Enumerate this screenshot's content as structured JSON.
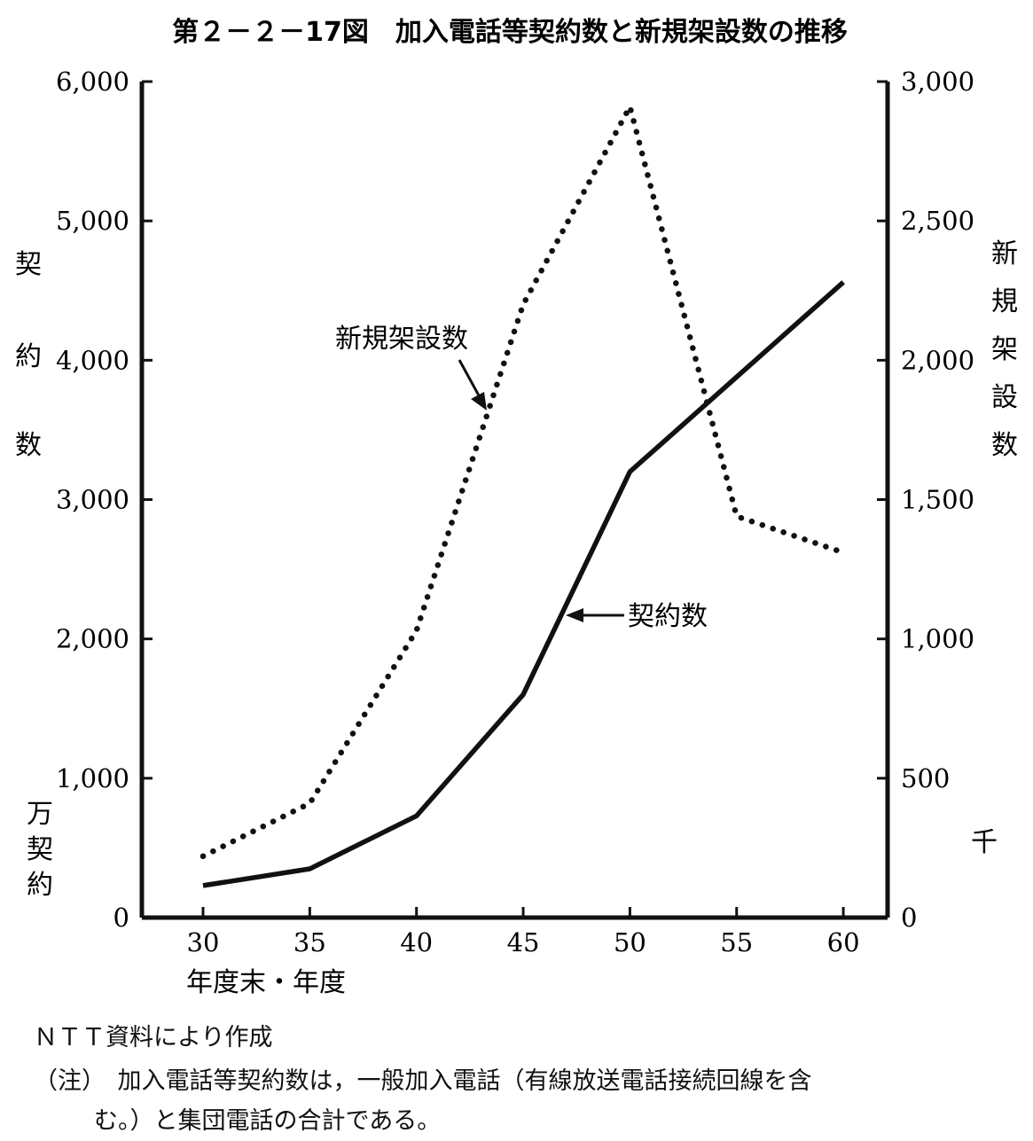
{
  "chart_data": {
    "type": "line",
    "title": "第２－２－17図　加入電話等契約数と新規架設数の推移",
    "xlabel": "年度末・年度",
    "categories": [
      "30",
      "35",
      "40",
      "45",
      "50",
      "55",
      "60"
    ],
    "x": [
      30,
      35,
      40,
      45,
      50,
      55,
      60
    ],
    "left_axis": {
      "label_chars": [
        "契",
        "約",
        "数"
      ],
      "unit_chars": [
        "万",
        "契",
        "約"
      ],
      "ylim": [
        0,
        6000
      ],
      "ticks": [
        0,
        1000,
        2000,
        3000,
        4000,
        5000,
        6000
      ],
      "tick_labels": [
        "0",
        "1,000",
        "2,000",
        "3,000",
        "4,000",
        "5,000",
        "6,000"
      ]
    },
    "right_axis": {
      "label_chars": [
        "新",
        "規",
        "架",
        "設",
        "数"
      ],
      "unit": "千",
      "ylim": [
        0,
        3000
      ],
      "ticks": [
        0,
        500,
        1000,
        1500,
        2000,
        2500,
        3000
      ],
      "tick_labels": [
        "0",
        "500",
        "1,000",
        "1,500",
        "2,000",
        "2,500",
        "3,000"
      ]
    },
    "series": [
      {
        "name": "新規架設数",
        "axis": "right",
        "style": "dotted",
        "x": [
          30,
          35,
          40,
          45,
          50,
          55,
          60
        ],
        "values": [
          220,
          410,
          1030,
          2200,
          2910,
          1440,
          1310
        ]
      },
      {
        "name": "契約数",
        "axis": "left",
        "style": "solid",
        "x": [
          30,
          35,
          40,
          45,
          50,
          55,
          60
        ],
        "values": [
          230,
          350,
          730,
          1600,
          3200,
          3880,
          4560
        ]
      }
    ],
    "annotations": {
      "new_installations_label": "新規架設数",
      "contracts_label": "契約数"
    }
  },
  "notes": {
    "source": "ＮＴＴ資料により作成",
    "note_line1": "（注）　加入電話等契約数は，一般加入電話（有線放送電話接続回線を含",
    "note_line2": "む。）と集団電話の合計である。"
  }
}
